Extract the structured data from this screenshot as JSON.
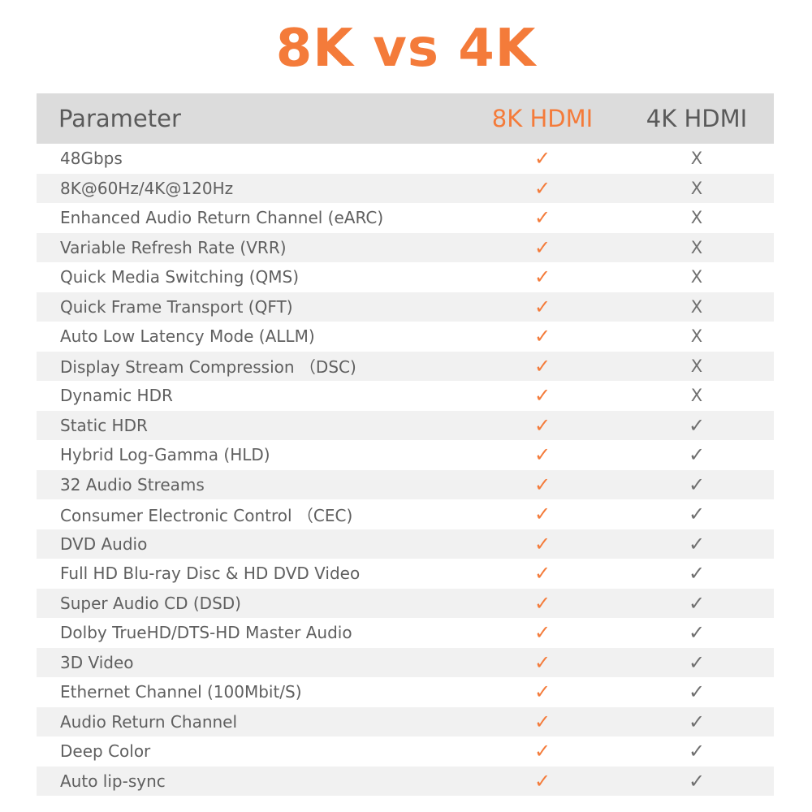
{
  "title": "8K vs 4K",
  "colors": {
    "accent": "#f47b3a",
    "header_bg": "#dcdcdc",
    "stripe": "#f1f1f1",
    "text": "#5f5f5f"
  },
  "header": {
    "parameter": "Parameter",
    "col_8k": "8K HDMI",
    "col_4k": "4K HDMI"
  },
  "rows": [
    {
      "parameter": "48Gbps",
      "hdmi_8k": "check",
      "hdmi_4k": "cross"
    },
    {
      "parameter": "8K@60Hz/4K@120Hz",
      "hdmi_8k": "check",
      "hdmi_4k": "cross"
    },
    {
      "parameter": "Enhanced Audio Return Channel (eARC)",
      "hdmi_8k": "check",
      "hdmi_4k": "cross"
    },
    {
      "parameter": "Variable Refresh Rate (VRR)",
      "hdmi_8k": "check",
      "hdmi_4k": "cross"
    },
    {
      "parameter": "Quick Media Switching (QMS)",
      "hdmi_8k": "check",
      "hdmi_4k": "cross"
    },
    {
      "parameter": "Quick Frame Transport (QFT)",
      "hdmi_8k": "check",
      "hdmi_4k": "cross"
    },
    {
      "parameter": "Auto Low Latency Mode (ALLM)",
      "hdmi_8k": "check",
      "hdmi_4k": "cross"
    },
    {
      "parameter": "Display Stream Compression （DSC)",
      "hdmi_8k": "check",
      "hdmi_4k": "cross"
    },
    {
      "parameter": "Dynamic HDR",
      "hdmi_8k": "check",
      "hdmi_4k": "cross"
    },
    {
      "parameter": "Static HDR",
      "hdmi_8k": "check",
      "hdmi_4k": "check"
    },
    {
      "parameter": "Hybrid Log-Gamma (HLD)",
      "hdmi_8k": "check",
      "hdmi_4k": "check"
    },
    {
      "parameter": "32 Audio Streams",
      "hdmi_8k": "check",
      "hdmi_4k": "check"
    },
    {
      "parameter": "Consumer Electronic Control （CEC)",
      "hdmi_8k": "check",
      "hdmi_4k": "check"
    },
    {
      "parameter": "DVD Audio",
      "hdmi_8k": "check",
      "hdmi_4k": "check"
    },
    {
      "parameter": "Full HD Blu-ray Disc & HD DVD Video",
      "hdmi_8k": "check",
      "hdmi_4k": "check"
    },
    {
      "parameter": "Super Audio CD (DSD)",
      "hdmi_8k": "check",
      "hdmi_4k": "check"
    },
    {
      "parameter": "Dolby TrueHD/DTS-HD Master Audio",
      "hdmi_8k": "check",
      "hdmi_4k": "check"
    },
    {
      "parameter": "3D Video",
      "hdmi_8k": "check",
      "hdmi_4k": "check"
    },
    {
      "parameter": "Ethernet Channel (100Mbit/S)",
      "hdmi_8k": "check",
      "hdmi_4k": "check"
    },
    {
      "parameter": "Audio Return Channel",
      "hdmi_8k": "check",
      "hdmi_4k": "check"
    },
    {
      "parameter": "Deep Color",
      "hdmi_8k": "check",
      "hdmi_4k": "check"
    },
    {
      "parameter": "Auto lip-sync",
      "hdmi_8k": "check",
      "hdmi_4k": "check"
    }
  ]
}
